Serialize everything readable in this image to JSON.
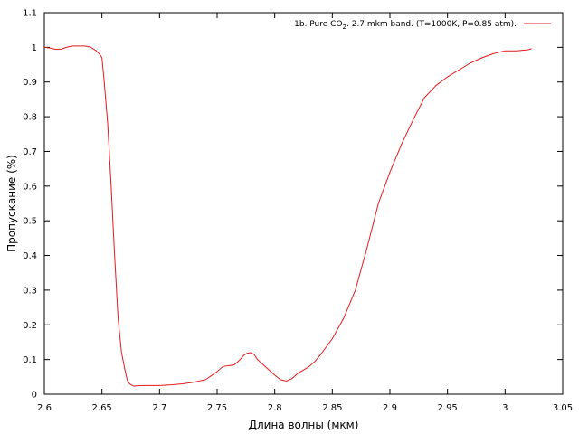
{
  "chart_data": {
    "type": "line",
    "title": "",
    "xlabel": "Длина волны (мкм)",
    "ylabel": "Пропускание (%)",
    "xlim": [
      2.6,
      3.05
    ],
    "ylim": [
      0,
      1.1
    ],
    "xticks": [
      "2.6",
      "2.65",
      "2.7",
      "2.75",
      "2.8",
      "2.85",
      "2.9",
      "2.95",
      "3",
      "3.05"
    ],
    "yticks": [
      "0",
      "0.1",
      "0.2",
      "0.3",
      "0.4",
      "0.5",
      "0.6",
      "0.7",
      "0.8",
      "0.9",
      "1",
      "1.1"
    ],
    "grid": false,
    "legend_position": "top-right",
    "series": [
      {
        "name_parts": [
          "1b. Pure CO",
          "2",
          ". 2.7 mkm band. (T=1000K, P=0.85 atm)."
        ],
        "color": "#e41a1c",
        "x": [
          2.6,
          2.605,
          2.61,
          2.615,
          2.62,
          2.625,
          2.63,
          2.635,
          2.64,
          2.645,
          2.648,
          2.65,
          2.652,
          2.655,
          2.658,
          2.661,
          2.664,
          2.667,
          2.67,
          2.672,
          2.674,
          2.676,
          2.678,
          2.68,
          2.685,
          2.69,
          2.7,
          2.71,
          2.72,
          2.73,
          2.74,
          2.75,
          2.755,
          2.76,
          2.765,
          2.77,
          2.773,
          2.776,
          2.779,
          2.782,
          2.785,
          2.79,
          2.795,
          2.8,
          2.805,
          2.81,
          2.815,
          2.82,
          2.825,
          2.83,
          2.835,
          2.84,
          2.85,
          2.86,
          2.87,
          2.88,
          2.89,
          2.9,
          2.91,
          2.92,
          2.93,
          2.94,
          2.95,
          2.96,
          2.97,
          2.98,
          2.99,
          3.0,
          3.01,
          3.02,
          3.023
        ],
        "y": [
          1.0,
          0.998,
          0.994,
          0.995,
          1.001,
          1.004,
          1.004,
          1.004,
          1.001,
          0.99,
          0.98,
          0.97,
          0.9,
          0.78,
          0.6,
          0.4,
          0.22,
          0.12,
          0.07,
          0.04,
          0.03,
          0.026,
          0.023,
          0.024,
          0.025,
          0.025,
          0.025,
          0.027,
          0.03,
          0.035,
          0.042,
          0.065,
          0.08,
          0.082,
          0.085,
          0.1,
          0.112,
          0.118,
          0.12,
          0.115,
          0.1,
          0.085,
          0.07,
          0.055,
          0.042,
          0.038,
          0.045,
          0.06,
          0.07,
          0.08,
          0.095,
          0.115,
          0.16,
          0.22,
          0.3,
          0.42,
          0.55,
          0.64,
          0.72,
          0.79,
          0.855,
          0.89,
          0.915,
          0.935,
          0.955,
          0.97,
          0.982,
          0.99,
          0.99,
          0.993,
          0.996
        ]
      }
    ]
  }
}
